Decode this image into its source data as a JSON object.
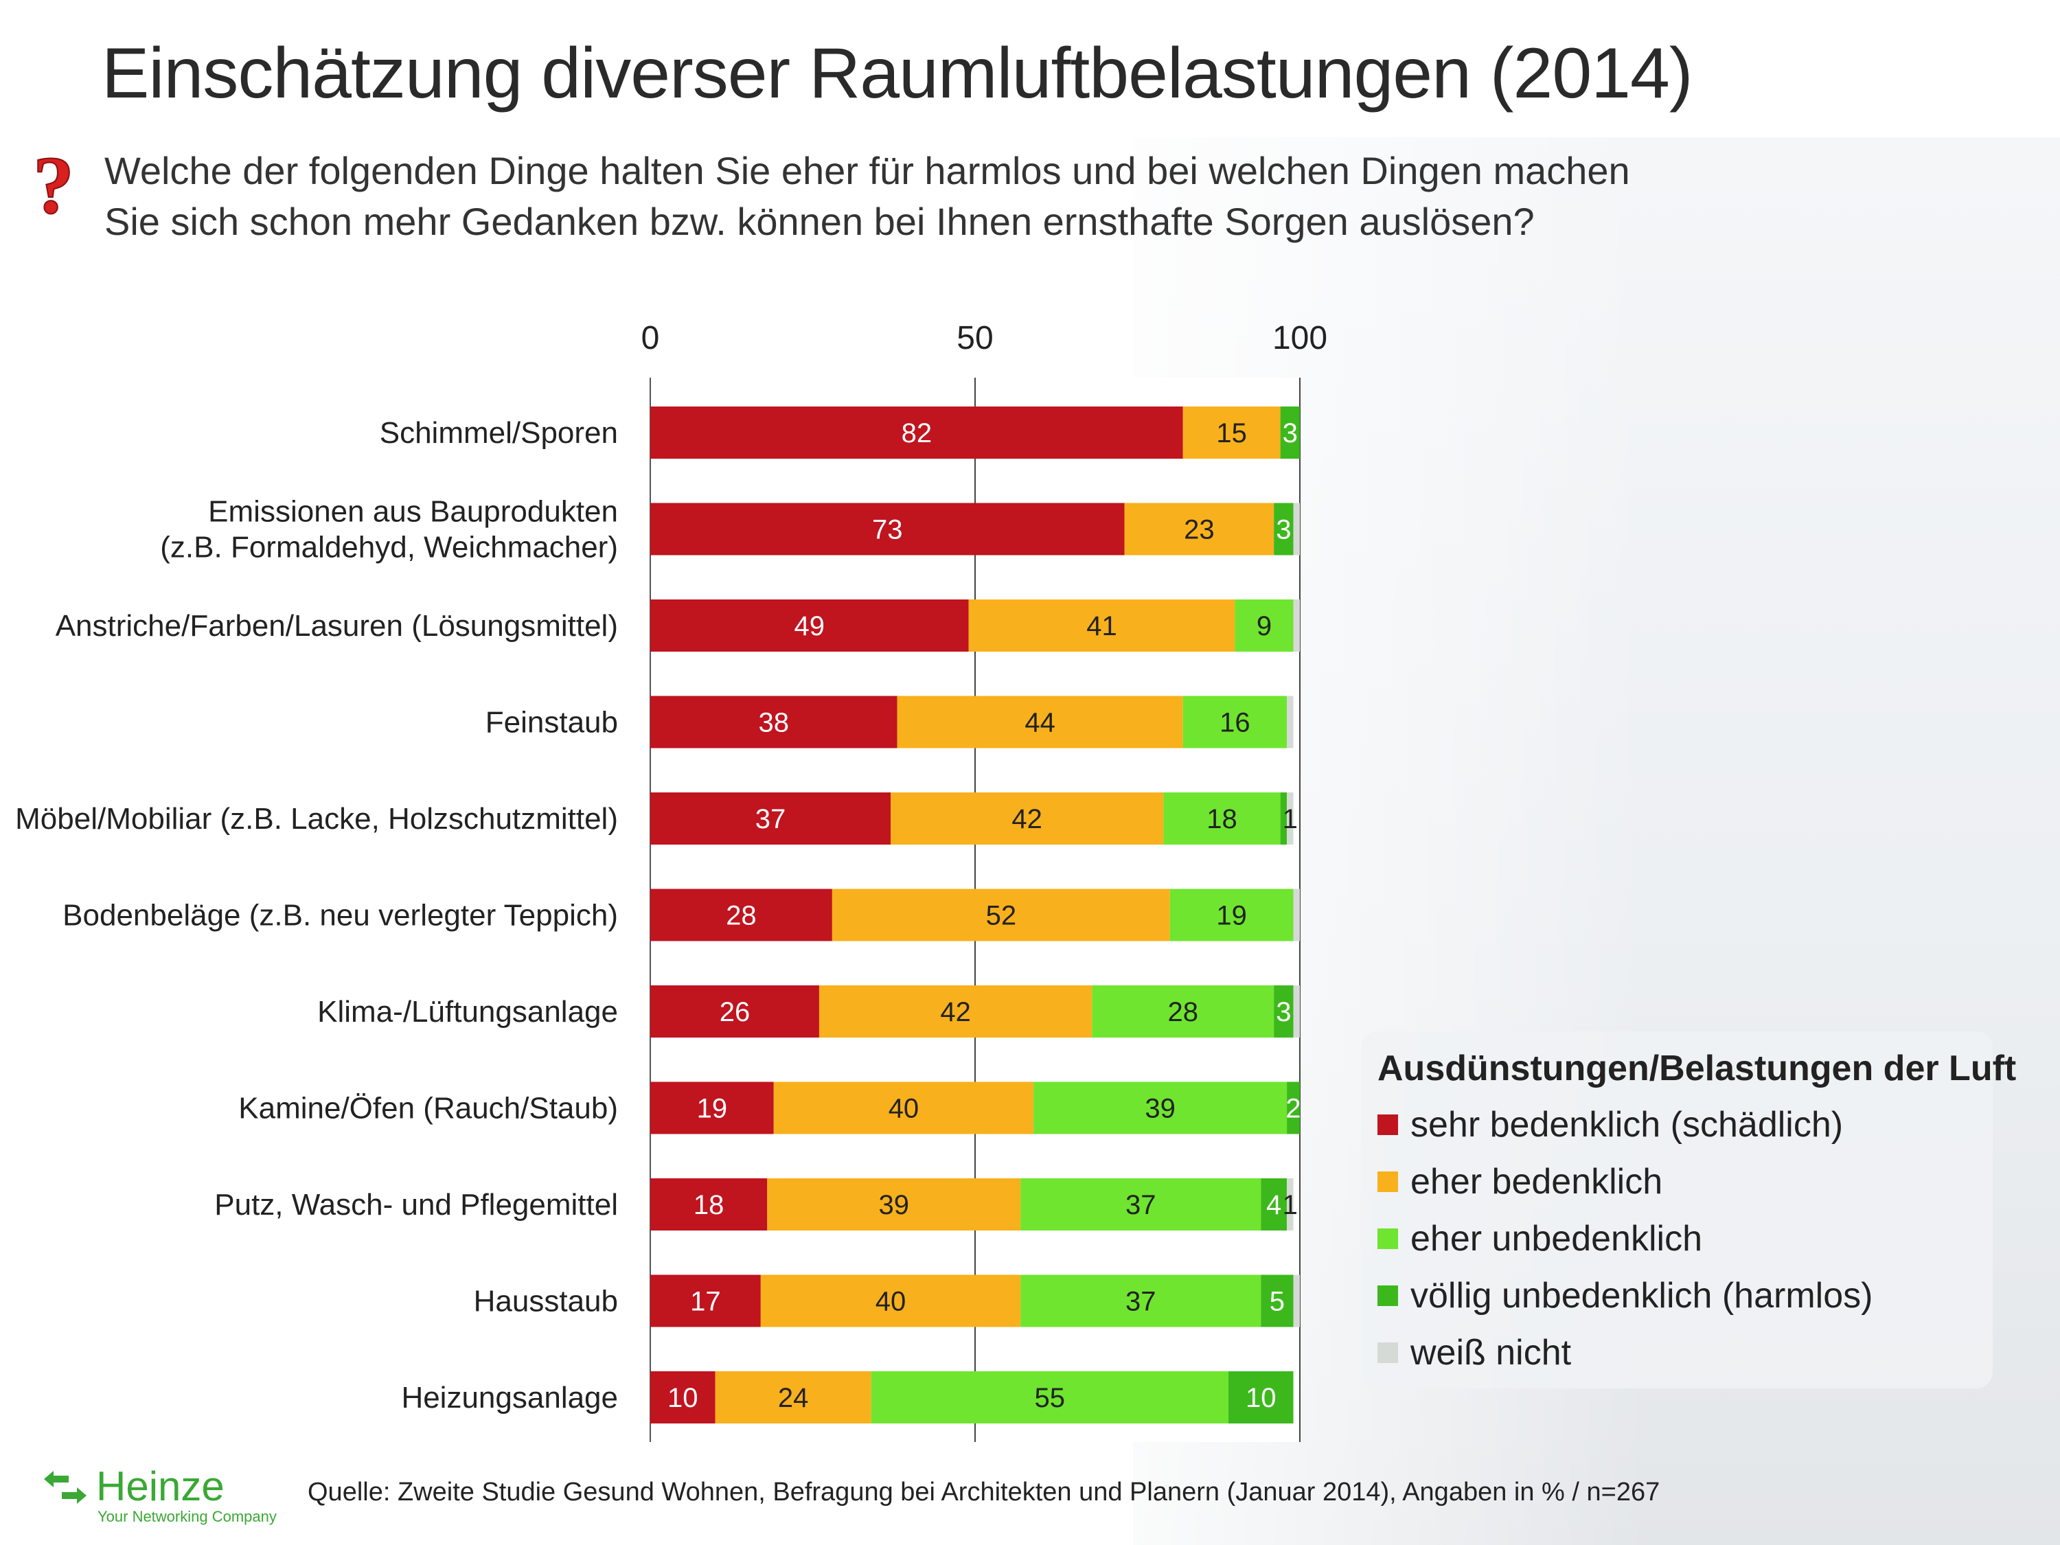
{
  "title": "Einschätzung diverser Raumluftbelastungen (2014)",
  "question": {
    "line1": "Welche der folgenden Dinge halten Sie eher für harmlos und bei welchen Dingen machen",
    "line2": "Sie sich schon mehr Gedanken bzw. können bei Ihnen ernsthafte Sorgen auslösen?"
  },
  "chart_data": {
    "type": "bar",
    "orientation": "horizontal",
    "stacked": true,
    "xlim": [
      0,
      100
    ],
    "x_ticks": [
      "0",
      "50",
      "100"
    ],
    "categories": [
      [
        "Schimmel/Sporen"
      ],
      [
        "Emissionen aus Bauprodukten",
        "(z.B. Formaldehyd, Weichmacher)"
      ],
      [
        "Anstriche/Farben/Lasuren (Lösungsmittel)"
      ],
      [
        "Feinstaub"
      ],
      [
        "Möbel/Mobiliar (z.B. Lacke, Holzschutzmittel)"
      ],
      [
        "Bodenbeläge (z.B. neu verlegter Teppich)"
      ],
      [
        "Klima-/Lüftungsanlage"
      ],
      [
        "Kamine/Öfen (Rauch/Staub)"
      ],
      [
        "Putz, Wasch- und Pflegemittel"
      ],
      [
        "Hausstaub"
      ],
      [
        "Heizungsanlage"
      ]
    ],
    "series": [
      {
        "name": "sehr bedenklich (schädlich)",
        "color": "#c0141f",
        "label_color": "#ffffff",
        "values": [
          82,
          73,
          49,
          38,
          37,
          28,
          26,
          19,
          18,
          17,
          10
        ]
      },
      {
        "name": "eher bedenklich",
        "color": "#f8b01c",
        "label_color": "#222222",
        "values": [
          15,
          23,
          41,
          44,
          42,
          52,
          42,
          40,
          39,
          40,
          24
        ]
      },
      {
        "name": "eher unbedenklich",
        "color": "#6fe52f",
        "label_color": "#222222",
        "values": [
          0,
          0,
          9,
          16,
          18,
          19,
          28,
          39,
          37,
          37,
          55
        ]
      },
      {
        "name": "völlig unbedenklich (harmlos)",
        "color": "#3cb81c",
        "label_color": "#ffffff",
        "values": [
          3,
          3,
          0,
          0,
          1,
          0,
          3,
          2,
          4,
          5,
          10
        ]
      },
      {
        "name": "weiß nicht",
        "color": "#d5dad6",
        "label_color": "#222222",
        "values": [
          0,
          1,
          1,
          1,
          1,
          1,
          1,
          0,
          1,
          1,
          0
        ]
      }
    ],
    "data_labels": [
      [
        "82",
        "15",
        "",
        "3",
        ""
      ],
      [
        "73",
        "23",
        "",
        "3",
        ""
      ],
      [
        "49",
        "41",
        "9",
        "",
        ""
      ],
      [
        "38",
        "44",
        "16",
        "",
        ""
      ],
      [
        "37",
        "42",
        "18",
        "",
        "1"
      ],
      [
        "28",
        "52",
        "19",
        "",
        ""
      ],
      [
        "26",
        "42",
        "28",
        "3",
        ""
      ],
      [
        "19",
        "40",
        "39",
        "2",
        ""
      ],
      [
        "18",
        "39",
        "37",
        "4",
        "1"
      ],
      [
        "17",
        "40",
        "37",
        "5",
        ""
      ],
      [
        "10",
        "24",
        "55",
        "10",
        ""
      ]
    ],
    "legend_title": "Ausdünstungen/Belastungen der Luft"
  },
  "legend": {
    "title": "Ausdünstungen/Belastungen der Luft",
    "items": [
      {
        "label": "sehr bedenklich (schädlich)",
        "color": "#c0141f"
      },
      {
        "label": "eher bedenklich",
        "color": "#f8b01c"
      },
      {
        "label": "eher unbedenklich",
        "color": "#6fe52f"
      },
      {
        "label": "völlig unbedenklich (harmlos)",
        "color": "#3cb81c"
      },
      {
        "label": "weiß nicht",
        "color": "#d5dad6"
      }
    ]
  },
  "source": "Quelle: Zweite Studie Gesund Wohnen, Befragung bei Architekten und Planern (Januar 2014), Angaben in % / n=267",
  "logo": {
    "name": "Heinze",
    "tagline": "Your Networking Company",
    "color": "#3aa834"
  }
}
